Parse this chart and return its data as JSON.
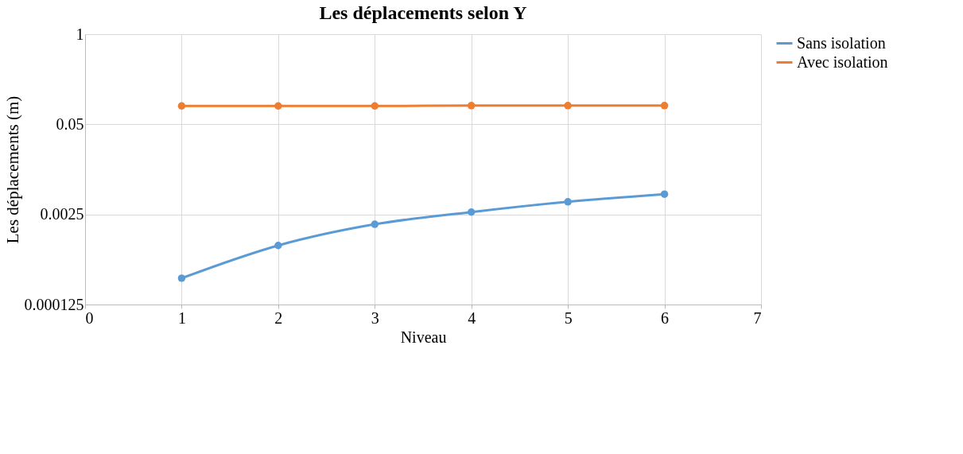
{
  "chart_data": {
    "type": "line",
    "title": "Les déplacements selon Y",
    "xlabel": "Niveau",
    "ylabel": "Les déplacements (m)",
    "x": [
      1,
      2,
      3,
      4,
      5,
      6
    ],
    "series": [
      {
        "name": "Sans isolation",
        "color": "#5b9bd5",
        "values": [
          0.0003,
          0.00089,
          0.0018,
          0.0027,
          0.0038,
          0.0049
        ]
      },
      {
        "name": "Avec isolation",
        "color": "#ed7d31",
        "values": [
          0.092,
          0.092,
          0.092,
          0.093,
          0.093,
          0.093
        ]
      }
    ],
    "xlim": [
      0,
      7
    ],
    "xticks": [
      0,
      1,
      2,
      3,
      4,
      5,
      6,
      7
    ],
    "ylim": [
      0.000125,
      1
    ],
    "yticks": [
      0.000125,
      0.0025,
      0.05,
      1
    ],
    "log": "y",
    "grid": true,
    "legend": "right",
    "marker": "circle",
    "line_style": "solid"
  }
}
